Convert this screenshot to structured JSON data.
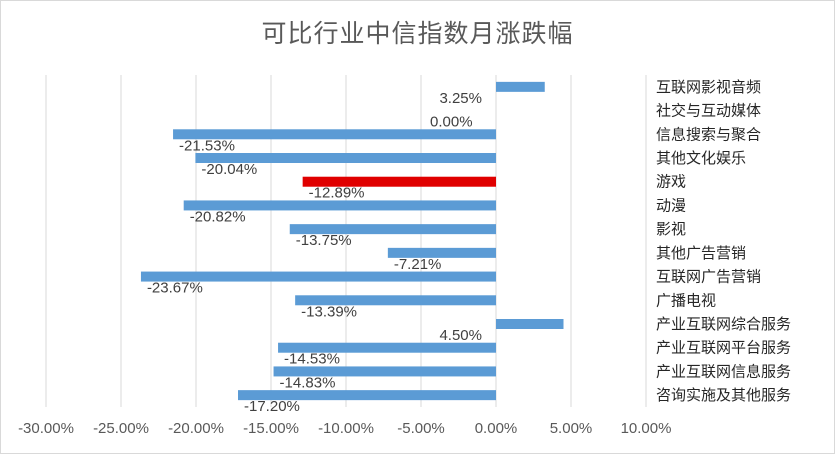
{
  "chart_data": {
    "type": "bar",
    "orientation": "horizontal",
    "title": "可比行业中信指数月涨跌幅",
    "categories": [
      "互联网影视音频",
      "社交与互动媒体",
      "信息搜索与聚合",
      "其他文化娱乐",
      "游戏",
      "动漫",
      "影视",
      "其他广告营销",
      "互联网广告营销",
      "广播电视",
      "产业互联网综合服务",
      "产业互联网平台服务",
      "产业互联网信息服务",
      "咨询实施及其他服务"
    ],
    "values": [
      3.25,
      0.0,
      -21.53,
      -20.04,
      -12.89,
      -20.82,
      -13.75,
      -7.21,
      -23.67,
      -13.39,
      4.5,
      -14.53,
      -14.83,
      -17.2
    ],
    "data_labels": [
      "3.25%",
      "0.00%",
      "-21.53%",
      "-20.04%",
      "-12.89%",
      "-20.82%",
      "-13.75%",
      "-7.21%",
      "-23.67%",
      "-13.39%",
      "4.50%",
      "-14.53%",
      "-14.83%",
      "-17.20%"
    ],
    "x_ticks": [
      "-30.00%",
      "-25.00%",
      "-20.00%",
      "-15.00%",
      "-10.00%",
      "-5.00%",
      "0.00%",
      "5.00%",
      "10.00%"
    ],
    "xlim": [
      -30,
      10
    ],
    "xlabel": "",
    "ylabel": "",
    "grid": "vertical",
    "legend": "none",
    "colors": {
      "default": "#5b9bd5",
      "highlight": "#e00000",
      "grid": "#d9d9d9",
      "text": "#595959"
    },
    "highlight_index": 4
  }
}
